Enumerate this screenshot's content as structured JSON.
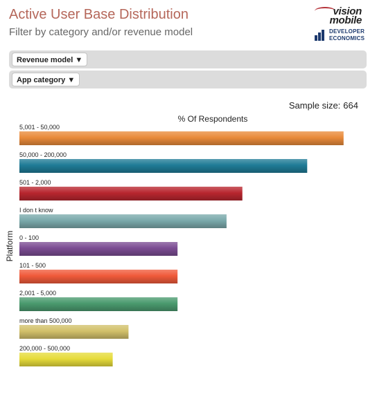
{
  "header": {
    "title": "Active User Base Distribution",
    "subtitle": "Filter by category and/or revenue model"
  },
  "logos": {
    "visionmobile_line1": "vision",
    "visionmobile_line2": "mobile",
    "devecon_line1": "DEVELOPER",
    "devecon_line2": "ECONOMICS"
  },
  "filters": {
    "revenue_model": "Revenue model ▼",
    "app_category": "App category ▼"
  },
  "sample": {
    "label": "Sample size:",
    "value": "664"
  },
  "chart_data": {
    "type": "bar",
    "orientation": "horizontal",
    "title": "% Of Respondents",
    "ylabel": "Platform",
    "categories": [
      "5,001 - 50,000",
      "50,000 - 200,000",
      "501 - 2,000",
      "I don t know",
      "0 - 100",
      "101 - 500",
      "2,001 - 5,000",
      "more than 500,000",
      "200,000 - 500,000"
    ],
    "values": [
      20.5,
      18.2,
      14.1,
      13.1,
      10.0,
      10.0,
      10.0,
      6.9,
      5.9
    ],
    "colors": [
      "#e98a3a",
      "#1f7b96",
      "#b8262f",
      "#7aa9ab",
      "#7b4c92",
      "#f05a3a",
      "#4a9a6e",
      "#d2c06a",
      "#e6dc3a"
    ],
    "xlim": [
      0,
      22
    ],
    "grid": false,
    "legend": false
  }
}
